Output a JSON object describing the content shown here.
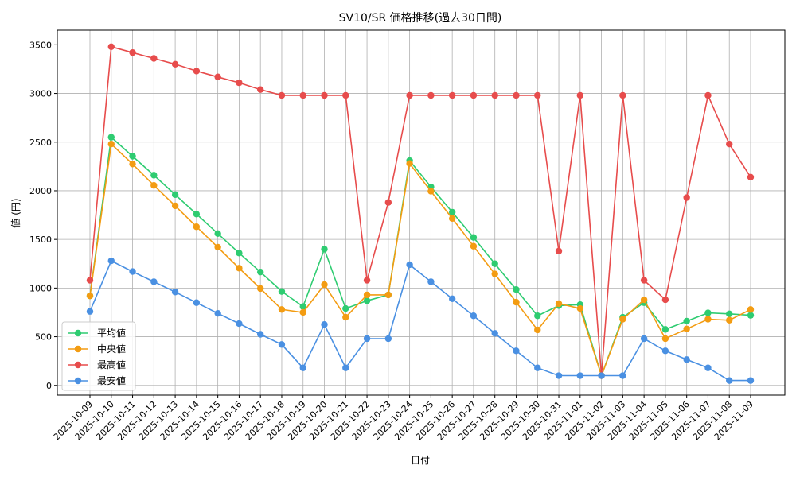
{
  "chart_data": {
    "type": "line",
    "title": "SV10/SR 価格推移(過去30日間)",
    "xlabel": "日付",
    "ylabel": "値 (円)",
    "ylim": [
      -100,
      3650
    ],
    "yticks": [
      0,
      500,
      1000,
      1500,
      2000,
      2500,
      3000,
      3500
    ],
    "grid": true,
    "legend_position": "lower-left",
    "x": [
      "2025-10-09",
      "2025-10-10",
      "2025-10-11",
      "2025-10-12",
      "2025-10-13",
      "2025-10-14",
      "2025-10-15",
      "2025-10-16",
      "2025-10-17",
      "2025-10-18",
      "2025-10-19",
      "2025-10-20",
      "2025-10-21",
      "2025-10-22",
      "2025-10-23",
      "2025-10-24",
      "2025-10-25",
      "2025-10-26",
      "2025-10-27",
      "2025-10-28",
      "2025-10-29",
      "2025-10-30",
      "2025-10-31",
      "2025-11-01",
      "2025-11-02",
      "2025-11-03",
      "2025-11-04",
      "2025-11-05",
      "2025-11-06",
      "2025-11-07",
      "2025-11-08",
      "2025-11-09"
    ],
    "series": [
      {
        "name": "平均値",
        "color": "#2ecc71",
        "values": [
          920,
          2550,
          2355,
          2160,
          1960,
          1760,
          1560,
          1360,
          1165,
          965,
          810,
          1400,
          790,
          870,
          930,
          2310,
          2040,
          1780,
          1520,
          1250,
          985,
          715,
          820,
          830,
          100,
          700,
          850,
          575,
          660,
          745,
          735,
          720
        ]
      },
      {
        "name": "中央値",
        "color": "#f39c12",
        "values": [
          920,
          2480,
          2275,
          2055,
          1845,
          1630,
          1420,
          1205,
          995,
          780,
          750,
          1035,
          700,
          930,
          930,
          2280,
          1995,
          1715,
          1430,
          1145,
          855,
          570,
          840,
          790,
          100,
          680,
          880,
          480,
          580,
          680,
          670,
          780
        ]
      },
      {
        "name": "最高値",
        "color": "#e74c4c",
        "values": [
          1080,
          3480,
          3420,
          3360,
          3300,
          3230,
          3170,
          3110,
          3040,
          2980,
          2980,
          2980,
          2980,
          1080,
          1880,
          2980,
          2980,
          2980,
          2980,
          2980,
          2980,
          2980,
          1380,
          2980,
          100,
          2980,
          1080,
          880,
          1930,
          2980,
          2480,
          2140
        ]
      },
      {
        "name": "最安値",
        "color": "#4a90e2",
        "values": [
          760,
          1280,
          1170,
          1065,
          960,
          850,
          740,
          635,
          525,
          420,
          180,
          625,
          180,
          480,
          480,
          1240,
          1065,
          890,
          715,
          535,
          355,
          180,
          100,
          100,
          100,
          100,
          480,
          355,
          265,
          180,
          50,
          50
        ]
      }
    ]
  }
}
